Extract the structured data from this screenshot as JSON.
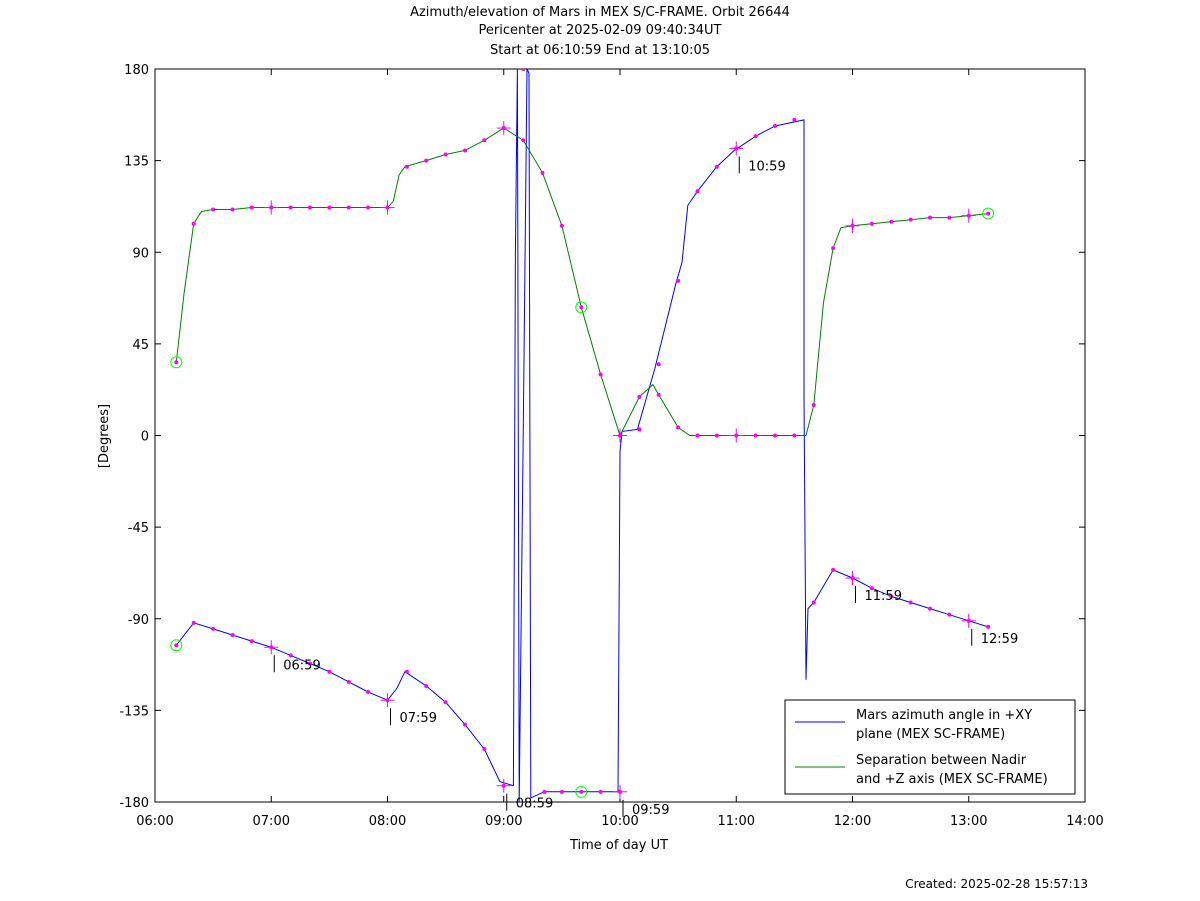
{
  "chart_data": {
    "type": "line",
    "title": "Azimuth/elevation of Mars in MEX S/C-FRAME.  Orbit 26644",
    "subtitle_lines": [
      "Pericenter at 2025-02-09 09:40:34UT",
      "Start at 06:10:59 End at 13:10:05"
    ],
    "xlabel": "Time of day UT",
    "ylabel": "[Degrees]",
    "xlim": [
      6,
      14
    ],
    "ylim": [
      -180,
      180
    ],
    "x_ticks": [
      6,
      7,
      8,
      9,
      10,
      11,
      12,
      13,
      14
    ],
    "x_tick_labels": [
      "06:00",
      "07:00",
      "08:00",
      "09:00",
      "10:00",
      "11:00",
      "12:00",
      "13:00",
      "14:00"
    ],
    "y_ticks": [
      180,
      135,
      90,
      45,
      0,
      -45,
      -90,
      -135,
      -180
    ],
    "y_tick_labels": [
      "180",
      "135",
      "90",
      "45",
      "0",
      "-45",
      "-90",
      "-135",
      "-180"
    ],
    "grid": false,
    "legend_position": "bottom-right",
    "series": [
      {
        "name": "Mars azimuth angle in +XY plane (MEX SC-FRAME)",
        "color": "#0000ff",
        "points": [
          [
            6.183,
            -103
          ],
          [
            6.333,
            -92
          ],
          [
            6.5,
            -95
          ],
          [
            6.667,
            -98
          ],
          [
            6.833,
            -101
          ],
          [
            7.0,
            -104
          ],
          [
            7.167,
            -108
          ],
          [
            7.333,
            -112
          ],
          [
            7.5,
            -116
          ],
          [
            7.667,
            -121
          ],
          [
            7.833,
            -126
          ],
          [
            8.0,
            -130
          ],
          [
            8.083,
            -124
          ],
          [
            8.15,
            -116
          ],
          [
            8.333,
            -123
          ],
          [
            8.5,
            -131
          ],
          [
            8.667,
            -142
          ],
          [
            8.833,
            -154
          ],
          [
            8.967,
            -170
          ],
          [
            9.083,
            -172
          ],
          [
            9.1,
            90
          ],
          [
            9.117,
            180
          ],
          [
            9.133,
            -180
          ],
          [
            9.167,
            0
          ],
          [
            9.2,
            180
          ],
          [
            9.217,
            178
          ],
          [
            9.233,
            -178
          ],
          [
            9.35,
            -175
          ],
          [
            9.5,
            -175
          ],
          [
            9.667,
            -175
          ],
          [
            9.833,
            -175
          ],
          [
            9.983,
            -175
          ],
          [
            10.0,
            -8
          ],
          [
            10.017,
            2
          ],
          [
            10.15,
            3
          ],
          [
            10.3,
            33
          ],
          [
            10.483,
            75
          ],
          [
            10.533,
            85
          ],
          [
            10.583,
            113
          ],
          [
            10.667,
            120
          ],
          [
            10.833,
            132
          ],
          [
            10.983,
            140
          ],
          [
            11.167,
            147
          ],
          [
            11.333,
            152
          ],
          [
            11.583,
            155
          ],
          [
            11.583,
            20
          ],
          [
            11.6,
            -120
          ],
          [
            11.617,
            -85
          ],
          [
            11.667,
            -82
          ],
          [
            11.833,
            -66
          ],
          [
            12.0,
            -70
          ],
          [
            12.167,
            -75
          ],
          [
            12.333,
            -79
          ],
          [
            12.5,
            -82
          ],
          [
            12.667,
            -85
          ],
          [
            12.833,
            -88
          ],
          [
            13.0,
            -91
          ],
          [
            13.167,
            -94
          ]
        ],
        "markers": [
          [
            6.183,
            -103
          ],
          [
            6.333,
            -92
          ],
          [
            6.5,
            -95
          ],
          [
            6.667,
            -98
          ],
          [
            6.833,
            -101
          ],
          [
            7.0,
            -104
          ],
          [
            7.167,
            -108
          ],
          [
            7.333,
            -112
          ],
          [
            7.5,
            -116
          ],
          [
            7.667,
            -121
          ],
          [
            7.833,
            -126
          ],
          [
            8.0,
            -130
          ],
          [
            8.167,
            -116
          ],
          [
            8.333,
            -123
          ],
          [
            8.5,
            -131
          ],
          [
            8.667,
            -142
          ],
          [
            8.833,
            -154
          ],
          [
            9.0,
            -172
          ],
          [
            9.167,
            180
          ],
          [
            9.35,
            -175
          ],
          [
            9.5,
            -175
          ],
          [
            9.667,
            -175
          ],
          [
            9.833,
            -175
          ],
          [
            10.0,
            -175
          ],
          [
            10.167,
            3
          ],
          [
            10.333,
            35
          ],
          [
            10.5,
            76
          ],
          [
            10.667,
            120
          ],
          [
            10.833,
            132
          ],
          [
            11.0,
            141
          ],
          [
            11.167,
            147
          ],
          [
            11.333,
            152
          ],
          [
            11.5,
            155
          ],
          [
            11.667,
            -82
          ],
          [
            11.833,
            -66
          ],
          [
            12.0,
            -70
          ],
          [
            12.167,
            -75
          ],
          [
            12.333,
            -79
          ],
          [
            12.5,
            -82
          ],
          [
            12.667,
            -85
          ],
          [
            12.833,
            -88
          ],
          [
            13.0,
            -91
          ],
          [
            13.167,
            -94
          ]
        ],
        "circles": [
          [
            6.183,
            -103
          ],
          [
            9.667,
            -175
          ]
        ],
        "crosses": [
          [
            7.0,
            -104
          ],
          [
            8.0,
            -130
          ],
          [
            9.0,
            -172
          ],
          [
            10.0,
            -175
          ],
          [
            11.0,
            141
          ],
          [
            12.0,
            -70
          ],
          [
            13.0,
            -91
          ]
        ]
      },
      {
        "name": "Separation between Nadir and +Z axis (MEX SC-FRAME)",
        "color": "#008000",
        "points": [
          [
            6.183,
            36
          ],
          [
            6.25,
            70
          ],
          [
            6.333,
            104
          ],
          [
            6.4,
            110
          ],
          [
            6.5,
            111
          ],
          [
            6.667,
            111
          ],
          [
            6.833,
            112
          ],
          [
            7.0,
            112
          ],
          [
            7.167,
            112
          ],
          [
            7.333,
            112
          ],
          [
            7.5,
            112
          ],
          [
            7.667,
            112
          ],
          [
            7.833,
            112
          ],
          [
            8.0,
            112
          ],
          [
            8.05,
            115
          ],
          [
            8.1,
            128
          ],
          [
            8.15,
            132
          ],
          [
            8.333,
            135
          ],
          [
            8.5,
            138
          ],
          [
            8.667,
            140
          ],
          [
            8.833,
            145
          ],
          [
            9.0,
            151
          ],
          [
            9.167,
            145
          ],
          [
            9.333,
            129
          ],
          [
            9.5,
            103
          ],
          [
            9.667,
            63
          ],
          [
            9.833,
            30
          ],
          [
            10.0,
            0
          ],
          [
            10.167,
            19
          ],
          [
            10.283,
            25
          ],
          [
            10.333,
            20
          ],
          [
            10.5,
            4
          ],
          [
            10.6,
            0
          ],
          [
            10.667,
            0
          ],
          [
            10.833,
            0
          ],
          [
            11.0,
            0
          ],
          [
            11.167,
            0
          ],
          [
            11.333,
            0
          ],
          [
            11.5,
            0
          ],
          [
            11.6,
            0
          ],
          [
            11.667,
            15
          ],
          [
            11.75,
            65
          ],
          [
            11.833,
            92
          ],
          [
            11.9,
            102
          ],
          [
            12.0,
            103
          ],
          [
            12.167,
            104
          ],
          [
            12.333,
            105
          ],
          [
            12.5,
            106
          ],
          [
            12.667,
            107
          ],
          [
            12.833,
            107
          ],
          [
            13.0,
            108
          ],
          [
            13.167,
            109
          ]
        ],
        "markers": [
          [
            6.183,
            36
          ],
          [
            6.333,
            104
          ],
          [
            6.5,
            111
          ],
          [
            6.667,
            111
          ],
          [
            6.833,
            112
          ],
          [
            7.0,
            112
          ],
          [
            7.167,
            112
          ],
          [
            7.333,
            112
          ],
          [
            7.5,
            112
          ],
          [
            7.667,
            112
          ],
          [
            7.833,
            112
          ],
          [
            8.0,
            112
          ],
          [
            8.167,
            132
          ],
          [
            8.333,
            135
          ],
          [
            8.5,
            138
          ],
          [
            8.667,
            140
          ],
          [
            8.833,
            145
          ],
          [
            9.0,
            151
          ],
          [
            9.167,
            145
          ],
          [
            9.333,
            129
          ],
          [
            9.5,
            103
          ],
          [
            9.667,
            63
          ],
          [
            9.833,
            30
          ],
          [
            10.0,
            0
          ],
          [
            10.167,
            19
          ],
          [
            10.333,
            20
          ],
          [
            10.5,
            4
          ],
          [
            10.667,
            0
          ],
          [
            10.833,
            0
          ],
          [
            11.0,
            0
          ],
          [
            11.167,
            0
          ],
          [
            11.333,
            0
          ],
          [
            11.5,
            0
          ],
          [
            11.667,
            15
          ],
          [
            11.833,
            92
          ],
          [
            12.0,
            103
          ],
          [
            12.167,
            104
          ],
          [
            12.333,
            105
          ],
          [
            12.5,
            106
          ],
          [
            12.667,
            107
          ],
          [
            12.833,
            107
          ],
          [
            13.0,
            108
          ],
          [
            13.167,
            109
          ]
        ],
        "circles": [
          [
            6.183,
            36
          ],
          [
            9.667,
            63
          ],
          [
            13.167,
            109
          ]
        ],
        "crosses": [
          [
            7.0,
            112
          ],
          [
            8.0,
            112
          ],
          [
            9.0,
            151
          ],
          [
            10.0,
            0
          ],
          [
            11.0,
            0
          ],
          [
            12.0,
            103
          ],
          [
            13.0,
            108
          ]
        ]
      }
    ],
    "annotations": [
      {
        "text": "06:59",
        "x": 7.0,
        "y": -104
      },
      {
        "text": "07:59",
        "x": 8.0,
        "y": -130
      },
      {
        "text": "08:59",
        "x": 9.0,
        "y": -172
      },
      {
        "text": "09:59",
        "x": 10.0,
        "y": -175
      },
      {
        "text": "10:59",
        "x": 11.0,
        "y": 141
      },
      {
        "text": "11:59",
        "x": 12.0,
        "y": -70
      },
      {
        "text": "12:59",
        "x": 13.0,
        "y": -91
      }
    ],
    "legend": [
      {
        "line1": "Mars azimuth angle in +XY",
        "line2": "plane (MEX SC-FRAME)",
        "color": "#0000ff"
      },
      {
        "line1": "Separation between Nadir",
        "line2": "and +Z axis (MEX SC-FRAME)",
        "color": "#008000"
      }
    ],
    "marker_color": "#ff00ff",
    "circle_color": "#00ff00"
  },
  "footer": {
    "created": "Created: 2025-02-28 15:57:13"
  }
}
